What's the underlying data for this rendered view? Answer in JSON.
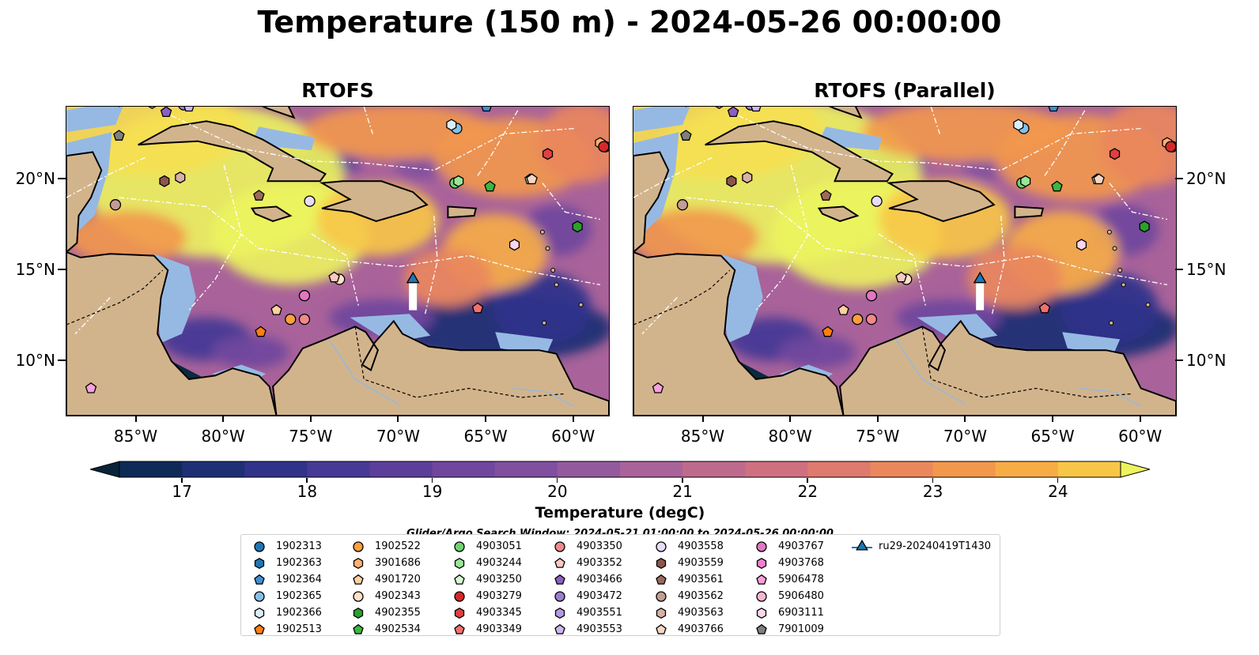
{
  "figure": {
    "suptitle": "Temperature (150 m) - 2024-05-26 00:00:00",
    "panels": [
      {
        "title": "RTOFS"
      },
      {
        "title": "RTOFS (Parallel)"
      }
    ],
    "lat_labels": [
      "20°N",
      "15°N",
      "10°N"
    ],
    "lon_labels": [
      "85°W",
      "80°W",
      "75°W",
      "70°W",
      "65°W",
      "60°W"
    ],
    "search_window": "Glider/Argo Search Window: 2024-05-21 01:00:00 to 2024-05-26 00:00:00"
  },
  "colors": {
    "land": "#d2b48c",
    "shelf": "#96b9e3",
    "deep": "#0b2a3e",
    "cmap": [
      "#09233a",
      "#0e2b58",
      "#1e2f74",
      "#30338a",
      "#463a96",
      "#5b3f9b",
      "#70479d",
      "#814f9f",
      "#945a9e",
      "#a9639a",
      "#be6a8d",
      "#cf7081",
      "#df7a6e",
      "#ea875c",
      "#f2984c",
      "#f7ad46",
      "#f8c647",
      "#f6df51",
      "#ecf45e"
    ]
  },
  "colorbar": {
    "label": "Temperature (degC)",
    "tick_labels": [
      "17",
      "18",
      "19",
      "20",
      "21",
      "22",
      "23",
      "24"
    ]
  },
  "chart_data": {
    "type": "heatmap",
    "title": "Temperature (150 m) - 2024-05-26 00:00:00",
    "variable": "Temperature",
    "units": "degC",
    "depth_m": 150,
    "time": "2024-05-26 00:00:00",
    "panels": [
      "RTOFS",
      "RTOFS (Parallel)"
    ],
    "lon_range": [
      -89,
      -58
    ],
    "lat_range": [
      7,
      24
    ],
    "xticks": [
      -85,
      -80,
      -75,
      -70,
      -65,
      -60
    ],
    "yticks": [
      20,
      15,
      10
    ],
    "colorbar": {
      "min": 16.5,
      "max": 24.5,
      "step": 0.5,
      "extend": "both",
      "ticks": [
        17,
        18,
        19,
        20,
        21,
        22,
        23,
        24
      ]
    },
    "floats": [
      {
        "id": "1902313",
        "color": "#1f77b4",
        "marker": "circle",
        "lon": -58.2,
        "lat": 21.8
      },
      {
        "id": "1902363",
        "color": "#1f77b4",
        "marker": "hexagon",
        "lon": -58.2,
        "lat": 21.8
      },
      {
        "id": "1902364",
        "color": "#3f8fd6",
        "marker": "pentagon",
        "lon": -65.0,
        "lat": 24.0
      },
      {
        "id": "1902365",
        "color": "#86bfe6",
        "marker": "circle",
        "lon": -66.7,
        "lat": 22.8
      },
      {
        "id": "1902366",
        "color": "#d9eefa",
        "marker": "hexagon",
        "lon": -67.0,
        "lat": 23.0
      },
      {
        "id": "1902513",
        "color": "#ff7f0e",
        "marker": "pentagon",
        "lon": -77.9,
        "lat": 11.6
      },
      {
        "id": "1902522",
        "color": "#ff9f3e",
        "marker": "circle",
        "lon": -76.2,
        "lat": 12.3
      },
      {
        "id": "3901686",
        "color": "#ffb070",
        "marker": "hexagon",
        "lon": -58.5,
        "lat": 22.0
      },
      {
        "id": "4901720",
        "color": "#ffd0a0",
        "marker": "pentagon",
        "lon": -77.0,
        "lat": 12.8
      },
      {
        "id": "4902343",
        "color": "#ffe0c8",
        "marker": "circle",
        "lon": -73.4,
        "lat": 14.5
      },
      {
        "id": "4902355",
        "color": "#2ca02c",
        "marker": "hexagon",
        "lon": -59.8,
        "lat": 17.4
      },
      {
        "id": "4902534",
        "color": "#3cb83c",
        "marker": "pentagon",
        "lon": -64.8,
        "lat": 19.6
      },
      {
        "id": "4903051",
        "color": "#6fd36f",
        "marker": "circle",
        "lon": -66.8,
        "lat": 19.8
      },
      {
        "id": "4903244",
        "color": "#98e698",
        "marker": "hexagon",
        "lon": -66.6,
        "lat": 19.9
      },
      {
        "id": "4903250",
        "color": "#d6f7d0",
        "marker": "pentagon",
        "lon": -62.5,
        "lat": 20.0
      },
      {
        "id": "4903279",
        "color": "#d62728",
        "marker": "circle",
        "lon": -58.3,
        "lat": 21.8
      },
      {
        "id": "4903345",
        "color": "#e04040",
        "marker": "hexagon",
        "lon": -61.5,
        "lat": 21.4
      },
      {
        "id": "4903349",
        "color": "#f07070",
        "marker": "pentagon",
        "lon": -65.5,
        "lat": 12.9
      },
      {
        "id": "4903350",
        "color": "#f08a8a",
        "marker": "circle",
        "lon": -75.4,
        "lat": 12.3
      },
      {
        "id": "4903352",
        "color": "#ffc8c0",
        "marker": "pentagon",
        "lon": -73.7,
        "lat": 14.6
      },
      {
        "id": "4903466",
        "color": "#8c5fc0",
        "marker": "pentagon",
        "lon": -83.3,
        "lat": 23.7
      },
      {
        "id": "4903472",
        "color": "#9a7ed0",
        "marker": "circle",
        "lon": -82.3,
        "lat": 24.1
      },
      {
        "id": "4903551",
        "color": "#b49ae0",
        "marker": "hexagon",
        "lon": -84.1,
        "lat": 24.2
      },
      {
        "id": "4903553",
        "color": "#cdb6ee",
        "marker": "pentagon",
        "lon": -82.0,
        "lat": 24.0
      },
      {
        "id": "4903558",
        "color": "#e8dcf8",
        "marker": "circle",
        "lon": -75.1,
        "lat": 18.8
      },
      {
        "id": "4903559",
        "color": "#8c564b",
        "marker": "hexagon",
        "lon": -83.4,
        "lat": 19.9
      },
      {
        "id": "4903561",
        "color": "#9c6a5c",
        "marker": "pentagon",
        "lon": -78.0,
        "lat": 19.1
      },
      {
        "id": "4903562",
        "color": "#c49c94",
        "marker": "circle",
        "lon": -86.2,
        "lat": 18.6
      },
      {
        "id": "4903563",
        "color": "#d8b0a8",
        "marker": "hexagon",
        "lon": -82.5,
        "lat": 20.1
      },
      {
        "id": "4903766",
        "color": "#f5d5c5",
        "marker": "pentagon",
        "lon": -62.4,
        "lat": 20.0
      },
      {
        "id": "4903767",
        "color": "#e377c2",
        "marker": "circle",
        "lon": -75.4,
        "lat": 13.6
      },
      {
        "id": "4903768",
        "color": "#f080d0",
        "marker": "hexagon",
        "lon": -86.0,
        "lat": 24.3
      },
      {
        "id": "5906478",
        "color": "#f7a0dc",
        "marker": "pentagon",
        "lon": -87.6,
        "lat": 8.5
      },
      {
        "id": "5906480",
        "color": "#f7b6d2",
        "marker": "circle",
        "lon": -85.8,
        "lat": 24.4
      },
      {
        "id": "6903111",
        "color": "#fbd5ea",
        "marker": "hexagon",
        "lon": -63.4,
        "lat": 16.4
      },
      {
        "id": "7901009",
        "color": "#7f7f7f",
        "marker": "pentagon",
        "lon": -86.0,
        "lat": 22.4
      },
      {
        "id": "ru29-20240419T1430",
        "color": "#1f77b4",
        "marker": "triangle",
        "lon": -69.2,
        "lat": 14.5
      }
    ]
  }
}
